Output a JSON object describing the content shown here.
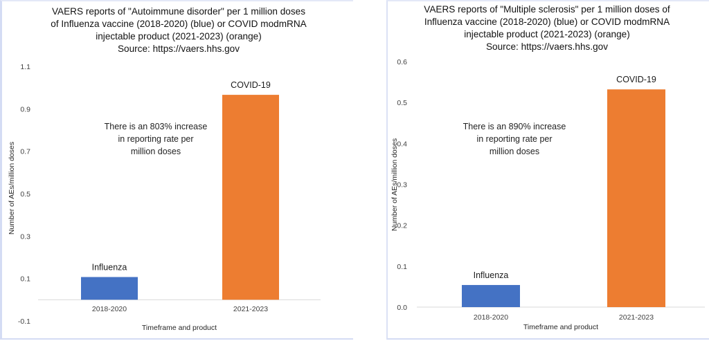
{
  "chart_data": [
    {
      "type": "bar",
      "title_lines": [
        "VAERS reports of \"Autoimmune disorder\" per 1 million doses",
        "of Influenza vaccine (2018-2020) (blue) or COVID modmRNA",
        "injectable product (2021-2023) (orange)",
        "Source: https://vaers.hhs.gov"
      ],
      "xlabel": "Timeframe and product",
      "ylabel": "Number of AEs/million doses",
      "categories": [
        "2018-2020",
        "2021-2023"
      ],
      "values": [
        0.107,
        0.966
      ],
      "bar_labels": [
        "Influenza",
        "COVID-19"
      ],
      "colors": [
        "#4472c4",
        "#ed7d31"
      ],
      "ylim": [
        -0.1,
        1.1
      ],
      "yticks": [
        -0.1,
        0.1,
        0.3,
        0.5,
        0.7,
        0.9,
        1.1
      ],
      "ytick_labels": [
        "-0.1",
        "0.1",
        "0.3",
        "0.5",
        "0.7",
        "0.9",
        "1.1"
      ],
      "grid": false,
      "annotation_lines": [
        "There is an 803% increase",
        "in reporting rate per",
        "million doses"
      ]
    },
    {
      "type": "bar",
      "title_lines": [
        "VAERS reports of \"Multiple sclerosis\" per 1 million doses of",
        "Influenza vaccine (2018-2020) (blue) or COVID modmRNA",
        "injectable product (2021-2023) (orange)",
        "Source: https://vaers.hhs.gov"
      ],
      "xlabel": "Timeframe and product",
      "ylabel": "Number of AEs/million doses",
      "categories": [
        "2018-2020",
        "2021-2023"
      ],
      "values": [
        0.054,
        0.532
      ],
      "bar_labels": [
        "Influenza",
        "COVID-19"
      ],
      "colors": [
        "#4472c4",
        "#ed7d31"
      ],
      "ylim": [
        0.0,
        0.6
      ],
      "yticks": [
        0.0,
        0.1,
        0.2,
        0.3,
        0.4,
        0.5,
        0.6
      ],
      "ytick_labels": [
        "0.0",
        "0.1",
        "0.2",
        "0.3",
        "0.4",
        "0.5",
        "0.6"
      ],
      "grid": false,
      "annotation_lines": [
        "There is an 890% increase",
        "in reporting rate per",
        "million doses"
      ]
    }
  ]
}
